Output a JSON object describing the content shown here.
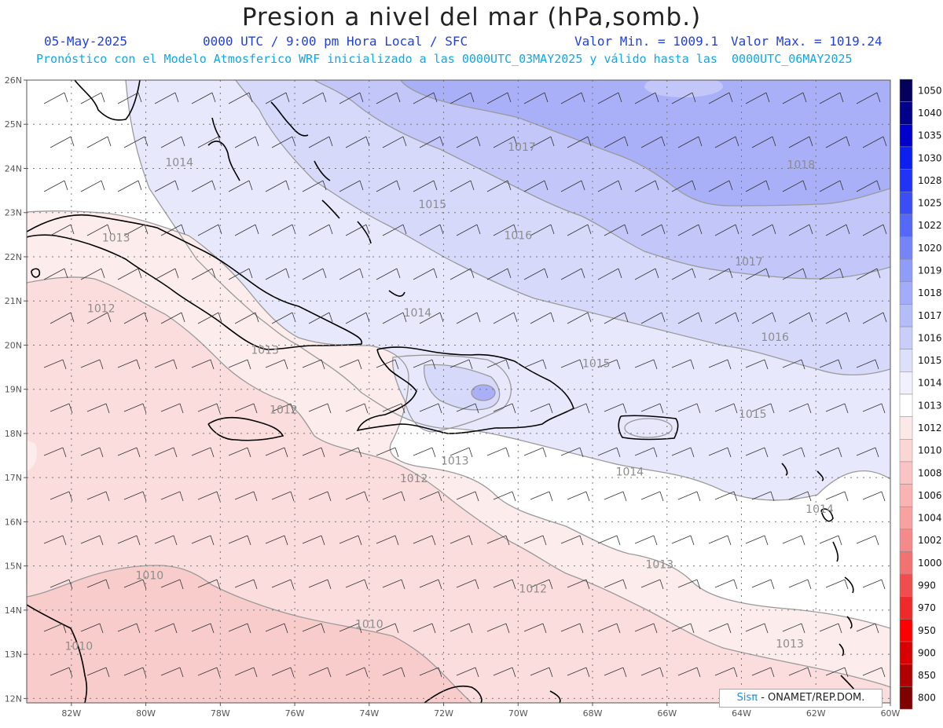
{
  "header": {
    "title": "Presion a nivel del mar (hPa,somb.)",
    "date": "05-May-2025",
    "time": "0000 UTC / 9:00 pm Hora Local / SFC",
    "min": "Valor Min. = 1009.1",
    "max": "Valor Max. = 1019.24",
    "forecast": "Pronóstico con el Modelo Atmosferico WRF inicializado a las 0000UTC_03MAY2025 y válido hasta las  0000UTC_06MAY2025"
  },
  "axes": {
    "lat_labels": [
      "26N",
      "25N",
      "24N",
      "23N",
      "22N",
      "21N",
      "20N",
      "19N",
      "18N",
      "17N",
      "16N",
      "15N",
      "14N",
      "13N",
      "12N"
    ],
    "lon_labels": [
      "82W",
      "80W",
      "78W",
      "76W",
      "74W",
      "72W",
      "70W",
      "68W",
      "66W",
      "64W",
      "62W",
      "60W"
    ]
  },
  "contour_labels": [
    {
      "text": "1014",
      "lon": -79.1,
      "lat": 24.05
    },
    {
      "text": "1015",
      "lon": -72.3,
      "lat": 23.1
    },
    {
      "text": "1016",
      "lon": -70.0,
      "lat": 22.4
    },
    {
      "text": "1017",
      "lon": -69.9,
      "lat": 24.4
    },
    {
      "text": "1018",
      "lon": -62.4,
      "lat": 24.0
    },
    {
      "text": "1017",
      "lon": -63.8,
      "lat": 21.8
    },
    {
      "text": "1016",
      "lon": -63.1,
      "lat": 20.1
    },
    {
      "text": "1015",
      "lon": -67.9,
      "lat": 19.5
    },
    {
      "text": "1015",
      "lon": -63.7,
      "lat": 18.35
    },
    {
      "text": "1014",
      "lon": -72.7,
      "lat": 20.65
    },
    {
      "text": "1014",
      "lon": -67.0,
      "lat": 17.05
    },
    {
      "text": "1014",
      "lon": -61.9,
      "lat": 16.2
    },
    {
      "text": "1013",
      "lon": -80.8,
      "lat": 22.35
    },
    {
      "text": "1013",
      "lon": -76.8,
      "lat": 19.8
    },
    {
      "text": "1013",
      "lon": -71.7,
      "lat": 17.3
    },
    {
      "text": "1013",
      "lon": -66.2,
      "lat": 14.95
    },
    {
      "text": "1013",
      "lon": -62.7,
      "lat": 13.15
    },
    {
      "text": "1012",
      "lon": -81.2,
      "lat": 20.75
    },
    {
      "text": "1012",
      "lon": -76.3,
      "lat": 18.45
    },
    {
      "text": "1012",
      "lon": -72.8,
      "lat": 16.9
    },
    {
      "text": "1012",
      "lon": -69.6,
      "lat": 14.4
    },
    {
      "text": "1010",
      "lon": -79.9,
      "lat": 14.7
    },
    {
      "text": "1010",
      "lon": -74.0,
      "lat": 13.6
    },
    {
      "text": "1010",
      "lon": -81.8,
      "lat": 13.1
    }
  ],
  "colorbar": {
    "levels": [
      "1050",
      "1040",
      "1035",
      "1030",
      "1028",
      "1025",
      "1022",
      "1020",
      "1019",
      "1018",
      "1017",
      "1016",
      "1015",
      "1014",
      "1013",
      "1012",
      "1010",
      "1008",
      "1006",
      "1004",
      "1002",
      "1000",
      "990",
      "970",
      "950",
      "900",
      "850",
      "800"
    ],
    "colors": [
      "#05005a",
      "#00008b",
      "#0000cc",
      "#0a1ff0",
      "#2233f8",
      "#3a4ef8",
      "#5668f8",
      "#7585f8",
      "#8f9cf8",
      "#a3acf8",
      "#b5bdf8",
      "#c8cdfa",
      "#dde0fb",
      "#f0f1fd",
      "#ffffff",
      "#fde8e8",
      "#fcd5d5",
      "#fbc4c4",
      "#f9b3b3",
      "#f7a1a1",
      "#f48a8a",
      "#f27272",
      "#f04e4e",
      "#ef2a2a",
      "#ff0000",
      "#d80000",
      "#b00000",
      "#800000"
    ]
  },
  "map_legend_colors": {
    "p1018": "#aab0f7",
    "p1017": "#c2c6f9",
    "p1016": "#d7d9fb",
    "p1015": "#e7e8fc",
    "p1014": "#ffffff",
    "p1013": "#fcecec",
    "p1012": "#fbdddd",
    "p1010": "#f9cccc"
  },
  "credit": {
    "brand": "Sisπ",
    "text": " - ONAMET/REP.DOM."
  }
}
